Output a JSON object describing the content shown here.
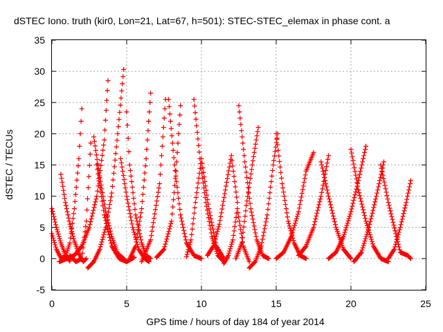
{
  "chart_data": {
    "type": "scatter",
    "title": "dSTEC Iono. truth (kir0, Lon=21, Lat=67, h=501): STEC-STEC_elemax in phase cont. a",
    "xlabel": "GPS time / hours of day 184 of year 2014",
    "ylabel": "dSTEC  / TECUs",
    "xlim": [
      0,
      25
    ],
    "ylim": [
      -5,
      35
    ],
    "x_ticks": [
      "0",
      "5",
      "10",
      "15",
      "20",
      "25"
    ],
    "y_ticks": [
      "-5",
      "0",
      "5",
      "10",
      "15",
      "20",
      "25",
      "30",
      "35"
    ],
    "grid": true,
    "marker": "+",
    "series_color": "#ff0000",
    "series": [
      {
        "x": [
          0.0,
          0.3,
          0.6,
          0.9,
          1.2,
          1.5,
          1.8,
          2.0
        ],
        "y": [
          4.0,
          1.5,
          0.1,
          0.3,
          2.5,
          8.0,
          16.0,
          24.0
        ]
      },
      {
        "x": [
          0.6,
          0.9,
          1.2,
          1.5,
          1.8,
          2.1,
          2.3
        ],
        "y": [
          13.5,
          9.0,
          5.5,
          2.8,
          0.8,
          -0.5,
          0.0
        ]
      },
      {
        "x": [
          0.0,
          0.3,
          0.6,
          0.9,
          1.2
        ],
        "y": [
          8.0,
          5.0,
          2.5,
          0.6,
          -0.4
        ]
      },
      {
        "x": [
          1.2,
          1.6,
          2.0,
          2.3,
          2.6
        ],
        "y": [
          0.5,
          -0.5,
          0.0,
          6.0,
          18.5
        ]
      },
      {
        "x": [
          0.5,
          1.0,
          1.5,
          2.0,
          2.5,
          3.0,
          3.5,
          3.75
        ],
        "y": [
          -0.5,
          0.0,
          0.5,
          2.0,
          5.0,
          10.0,
          19.0,
          28.5
        ]
      },
      {
        "x": [
          2.4,
          2.8,
          3.2,
          3.6,
          4.0,
          4.4,
          4.8
        ],
        "y": [
          -1.5,
          -0.5,
          1.5,
          5.0,
          10.5,
          20.0,
          30.3
        ]
      },
      {
        "x": [
          2.8,
          3.2,
          3.6,
          4.0,
          4.4,
          4.8
        ],
        "y": [
          19.5,
          13.0,
          7.5,
          3.5,
          0.8,
          0.0
        ]
      },
      {
        "x": [
          3.0,
          3.5,
          4.0,
          4.5,
          5.0,
          5.5
        ],
        "y": [
          15.0,
          7.0,
          2.0,
          0.0,
          -0.5,
          0.2
        ]
      },
      {
        "x": [
          4.6,
          5.0,
          5.4,
          5.8,
          6.2,
          6.5
        ],
        "y": [
          16.0,
          10.0,
          5.0,
          1.5,
          0.0,
          -0.5
        ]
      },
      {
        "x": [
          5.0,
          5.2,
          5.6,
          6.0,
          6.3,
          6.6
        ],
        "y": [
          23.5,
          15.0,
          7.0,
          2.5,
          0.5,
          0.0
        ]
      },
      {
        "x": [
          5.2,
          5.6,
          6.0,
          6.3,
          6.6
        ],
        "y": [
          0.0,
          2.0,
          8.0,
          16.0,
          26.5
        ]
      },
      {
        "x": [
          6.0,
          6.6,
          7.2,
          7.6
        ],
        "y": [
          -0.5,
          3.0,
          12.0,
          25.5
        ]
      },
      {
        "x": [
          7.8,
          8.2,
          8.6,
          9.0,
          9.5,
          10.0
        ],
        "y": [
          25.5,
          15.0,
          7.0,
          2.5,
          0.5,
          0.0
        ]
      },
      {
        "x": [
          7.0,
          7.5,
          8.0,
          8.3,
          8.6
        ],
        "y": [
          0.2,
          1.5,
          6.0,
          14.0,
          24.5
        ]
      },
      {
        "x": [
          9.0,
          9.3,
          9.6,
          10.0,
          10.5,
          11.0,
          11.5
        ],
        "y": [
          0.3,
          3.0,
          9.0,
          16.0,
          8.0,
          2.0,
          0.0
        ]
      },
      {
        "x": [
          9.5,
          9.9,
          10.3,
          10.7,
          11.1,
          11.5
        ],
        "y": [
          25.5,
          16.0,
          9.0,
          3.5,
          0.5,
          -0.5
        ]
      },
      {
        "x": [
          10.4,
          10.8,
          11.2,
          11.6,
          12.0,
          12.4
        ],
        "y": [
          0.5,
          2.0,
          5.5,
          11.0,
          16.5,
          9.0
        ]
      },
      {
        "x": [
          11.5,
          11.8,
          12.1,
          12.4,
          12.8,
          13.2
        ],
        "y": [
          -0.8,
          0.5,
          3.0,
          8.0,
          2.0,
          -0.5
        ]
      },
      {
        "x": [
          12.5,
          12.9,
          13.3,
          13.7,
          14.1,
          14.5
        ],
        "y": [
          24.5,
          15.5,
          8.0,
          3.0,
          0.5,
          0.0
        ]
      },
      {
        "x": [
          12.3,
          12.7,
          13.0,
          13.4,
          13.8
        ],
        "y": [
          0.0,
          2.5,
          8.5,
          15.0,
          21.0
        ]
      },
      {
        "x": [
          13.2,
          13.6,
          14.0,
          14.4,
          14.8,
          15.1
        ],
        "y": [
          -1.5,
          -0.5,
          2.0,
          7.0,
          15.0,
          20.0
        ]
      },
      {
        "x": [
          15.0,
          15.4,
          15.8,
          16.2,
          16.6,
          17.0
        ],
        "y": [
          20.0,
          12.0,
          6.0,
          2.5,
          0.5,
          0.0
        ]
      },
      {
        "x": [
          15.0,
          15.5,
          16.0,
          16.5,
          17.0,
          17.5
        ],
        "y": [
          0.0,
          1.0,
          3.5,
          7.5,
          14.0,
          17.0
        ]
      },
      {
        "x": [
          16.5,
          17.0,
          17.5,
          18.0,
          18.5
        ],
        "y": [
          0.5,
          2.0,
          5.0,
          10.0,
          16.5
        ]
      },
      {
        "x": [
          18.0,
          18.5,
          19.0,
          19.5,
          20.0
        ],
        "y": [
          15.5,
          10.0,
          5.0,
          1.5,
          0.0
        ]
      },
      {
        "x": [
          18.5,
          19.0,
          19.5,
          20.0,
          20.5,
          21.0
        ],
        "y": [
          0.0,
          1.0,
          3.5,
          7.5,
          12.5,
          18.0
        ]
      },
      {
        "x": [
          20.0,
          20.5,
          21.0,
          21.5,
          22.0,
          22.5
        ],
        "y": [
          17.5,
          11.0,
          6.0,
          2.0,
          0.0,
          -0.5
        ]
      },
      {
        "x": [
          20.2,
          20.7,
          21.2,
          21.7,
          22.2
        ],
        "y": [
          -0.5,
          1.0,
          5.0,
          10.0,
          15.5
        ]
      },
      {
        "x": [
          22.0,
          22.5,
          23.0,
          23.3,
          23.8,
          24.0
        ],
        "y": [
          15.0,
          9.0,
          4.0,
          1.0,
          0.5,
          0.0
        ]
      },
      {
        "x": [
          22.5,
          22.9,
          23.3,
          23.7,
          24.0
        ],
        "y": [
          0.0,
          1.5,
          5.0,
          9.0,
          12.5
        ]
      }
    ]
  }
}
